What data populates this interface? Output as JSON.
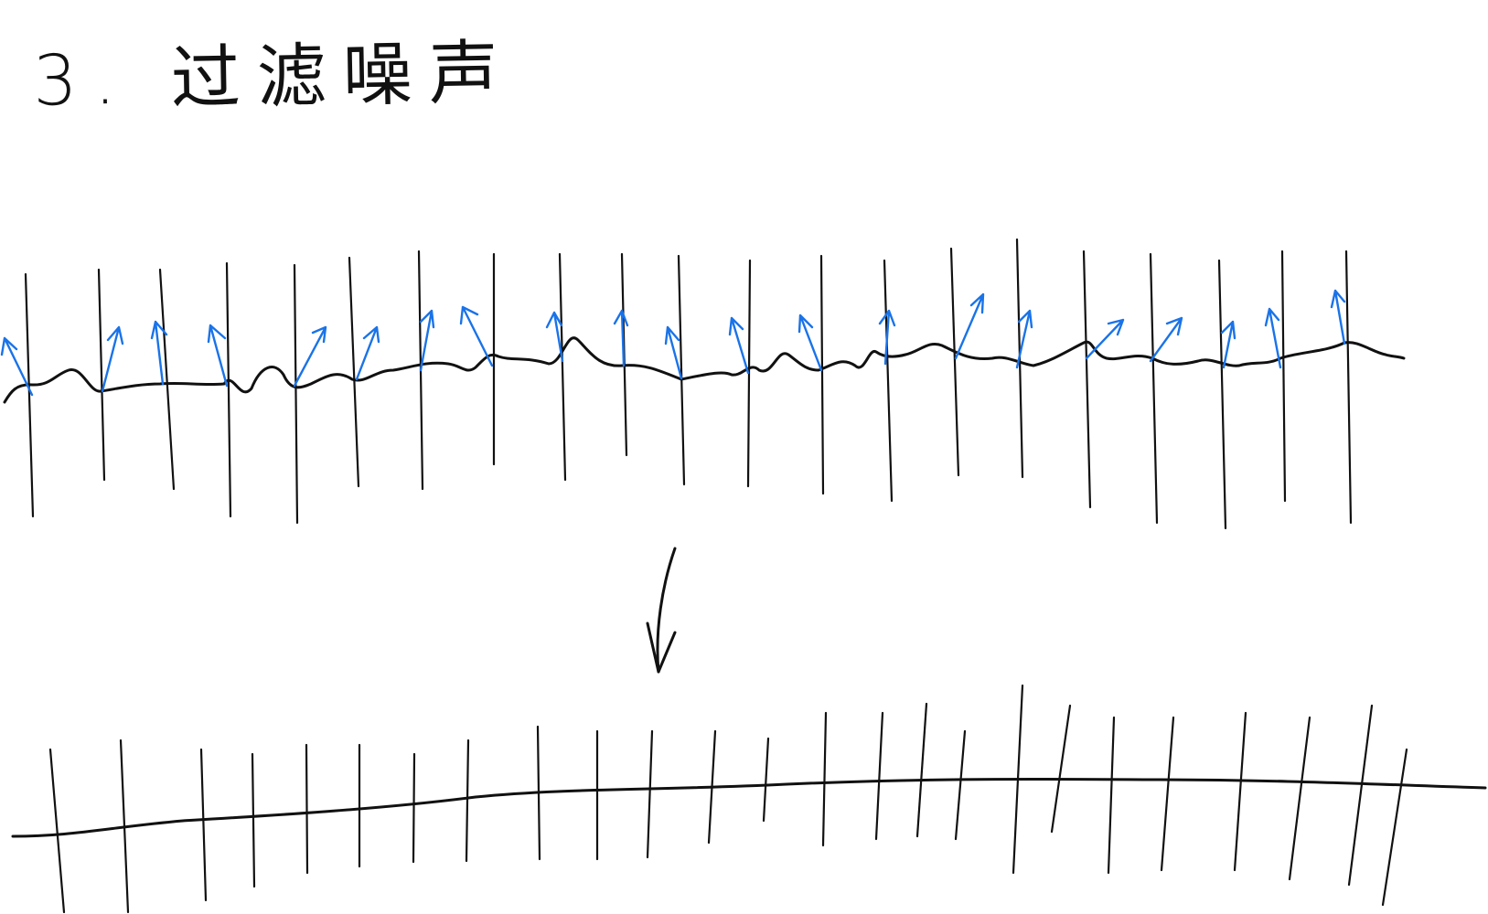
{
  "title": "3. 过滤噪声",
  "colors": {
    "ink": "#111111",
    "normal_arrow": "#1a73e8"
  }
}
